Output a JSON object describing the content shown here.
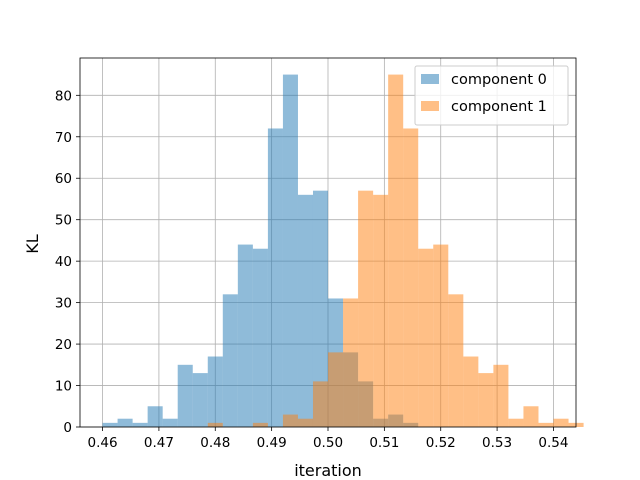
{
  "chart_data": {
    "type": "histogram",
    "xlabel": "iteration",
    "ylabel": "KL",
    "xlim": [
      0.456,
      0.544
    ],
    "ylim": [
      0,
      89
    ],
    "grid": true,
    "legend_position": "top-right",
    "x_ticks": [
      "0.46",
      "0.47",
      "0.48",
      "0.49",
      "0.50",
      "0.51",
      "0.52",
      "0.53",
      "0.54"
    ],
    "y_ticks": [
      "0",
      "10",
      "20",
      "30",
      "40",
      "50",
      "60",
      "70",
      "80"
    ],
    "series": [
      {
        "name": "component 0",
        "color": "#1f77b4",
        "opacity": 0.5,
        "bin_start": 0.46,
        "bin_width": 0.002667,
        "counts": [
          1,
          2,
          1,
          5,
          2,
          15,
          13,
          17,
          32,
          44,
          43,
          72,
          85,
          56,
          57,
          31,
          18,
          11,
          2,
          3,
          1
        ]
      },
      {
        "name": "component 1",
        "color": "#ff7f0e",
        "opacity": 0.5,
        "bin_start": 0.46,
        "bin_width": 0.002667,
        "counts": [
          0,
          0,
          0,
          0,
          0,
          0,
          0,
          1,
          0,
          0,
          1,
          0,
          3,
          2,
          11,
          18,
          31,
          57,
          56,
          85,
          72,
          43,
          44,
          32,
          17,
          13,
          15,
          2,
          5,
          1,
          2,
          1
        ]
      }
    ]
  }
}
